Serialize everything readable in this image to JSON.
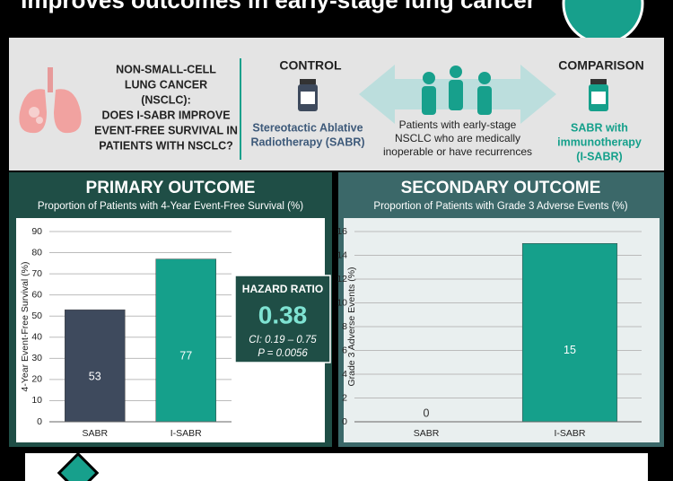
{
  "header": {
    "title": "Improves outcomes in early-stage lung cancer"
  },
  "intro": {
    "question": [
      "NON-SMALL-CELL",
      "LUNG CANCER",
      "(NSCLC):",
      "DOES I-SABR IMPROVE",
      "EVENT-FREE SURVIVAL IN",
      "PATIENTS WITH NSCLC?"
    ],
    "control": {
      "label": "CONTROL",
      "text": [
        "Stereotactic Ablative",
        "Radiotherapy (SABR)"
      ]
    },
    "population": [
      "Patients with early-stage",
      "NSCLC who are medically",
      "inoperable or have recurrences"
    ],
    "comparison": {
      "label": "COMPARISON",
      "text": [
        "SABR with",
        "immunotherapy",
        "(I-SABR)"
      ]
    }
  },
  "chart_data": [
    {
      "type": "bar",
      "title": "PRIMARY OUTCOME",
      "subtitle": "Proportion of Patients with 4-Year Event-Free Survival (%)",
      "y_label": "4-Year Event-Free Survival (%)",
      "categories": [
        "SABR",
        "I-SABR"
      ],
      "values": [
        53,
        77
      ],
      "colors": [
        "#3e4a5d",
        "#15a08b"
      ],
      "ylim": [
        0,
        90
      ],
      "yticks": [
        0,
        10,
        20,
        30,
        40,
        50,
        60,
        70,
        80,
        90
      ],
      "grid": true,
      "annotation": {
        "title": "HAZARD RATIO",
        "value": "0.38",
        "lines": [
          "CI: 0.19 – 0.75",
          "P = 0.0056"
        ]
      }
    },
    {
      "type": "bar",
      "title": "SECONDARY OUTCOME",
      "subtitle": "Proportion of Patients with Grade 3 Adverse Events (%)",
      "y_label": "Grade 3 Adverse Events (%)",
      "categories": [
        "SABR",
        "I-SABR"
      ],
      "values": [
        0,
        15
      ],
      "colors": [
        "#3e4a5d",
        "#15a08b"
      ],
      "ylim": [
        0,
        16
      ],
      "yticks": [
        0,
        2,
        4,
        6,
        8,
        10,
        12,
        14,
        16
      ],
      "grid": true
    }
  ]
}
